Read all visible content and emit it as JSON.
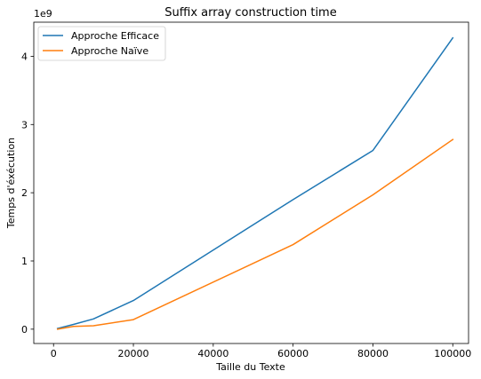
{
  "chart_data": {
    "type": "line",
    "title": "Suffix array construction time",
    "xlabel": "Taille du Texte",
    "ylabel": "Temps d'éxécution",
    "y_offset_label": "1e9",
    "x_ticks": [
      0,
      20000,
      40000,
      60000,
      80000,
      100000
    ],
    "x_tick_labels": [
      "0",
      "20000",
      "40000",
      "60000",
      "80000",
      "100000"
    ],
    "y_ticks": [
      0,
      1,
      2,
      3,
      4
    ],
    "y_tick_labels": [
      "0",
      "1",
      "2",
      "3",
      "4"
    ],
    "xlim": [
      -4950,
      103950
    ],
    "ylim": [
      -0.21,
      4.5
    ],
    "y_scale_note": "values in units of 1e9",
    "grid": false,
    "legend_position": "upper-left",
    "series": [
      {
        "name": "Approche Efficace",
        "color": "#1f77b4",
        "x": [
          1000,
          5000,
          10000,
          20000,
          60000,
          80000,
          100000
        ],
        "y": [
          0.01,
          0.07,
          0.15,
          0.42,
          1.9,
          2.62,
          4.27
        ]
      },
      {
        "name": "Approche Naïve",
        "color": "#ff7f0e",
        "x": [
          1000,
          5000,
          10000,
          20000,
          60000,
          80000,
          100000
        ],
        "y": [
          0.0,
          0.04,
          0.05,
          0.14,
          1.24,
          1.97,
          2.78
        ]
      }
    ]
  }
}
